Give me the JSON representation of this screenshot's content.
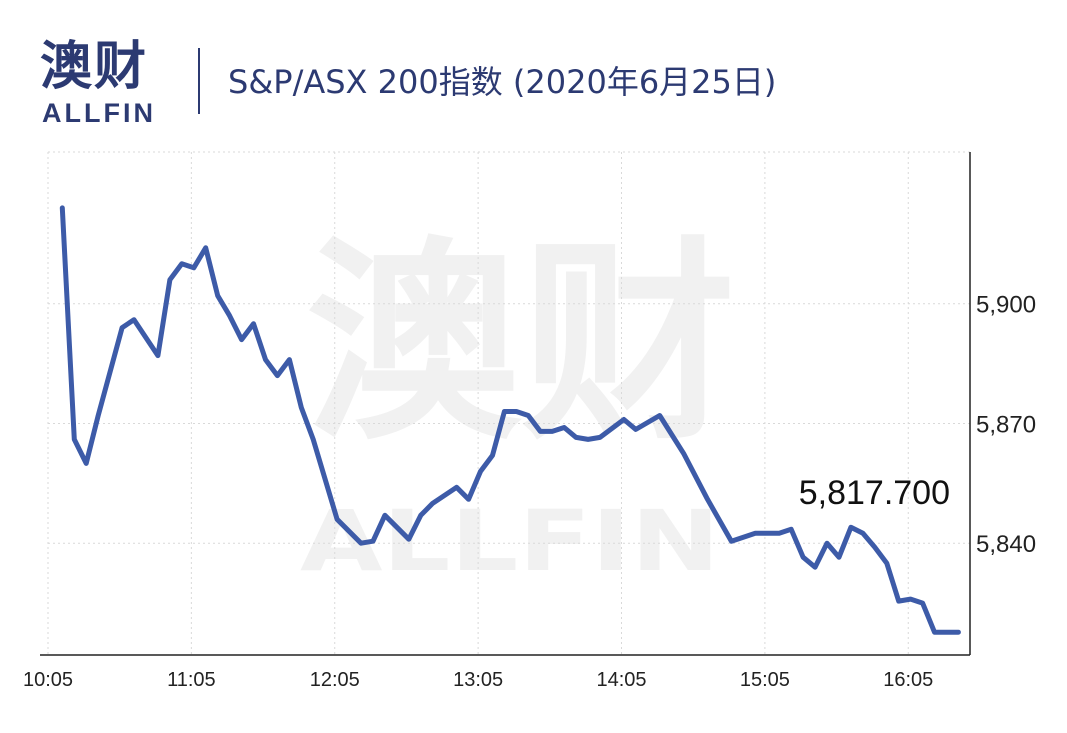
{
  "header": {
    "logo_cn": "澳财",
    "logo_en": "ALLFIN",
    "title": "S&P/ASX 200指数 (2020年6月25日)"
  },
  "watermark": {
    "cn": "澳财",
    "en": "ALLFIN"
  },
  "colors": {
    "line": "#3d5ba8",
    "brand": "#2c3a72",
    "accent": "#d63a5a",
    "grid": "#d9d9d9"
  },
  "chart_data": {
    "type": "line",
    "title": "S&P/ASX 200指数 (2020年6月25日)",
    "x_ticks": [
      "10:05",
      "11:05",
      "12:05",
      "13:05",
      "14:05",
      "15:05",
      "16:05"
    ],
    "y_ticks": [
      "5,840",
      "5,870",
      "5,900"
    ],
    "y_tick_values": [
      5840,
      5870,
      5900
    ],
    "xlim": [
      "10:05",
      "16:30"
    ],
    "ylim": [
      5812,
      5938
    ],
    "grid": true,
    "y_axis_position": "right",
    "annotation": {
      "text": "5,817.700",
      "value": 5817.7
    },
    "series": [
      {
        "x": [
          "10:11",
          "10:16",
          "10:21",
          "10:26",
          "10:36",
          "10:41",
          "10:51",
          "10:56",
          "11:01",
          "11:06",
          "11:11",
          "11:16",
          "11:21",
          "11:26",
          "11:31",
          "11:36",
          "11:41",
          "11:46",
          "11:51",
          "11:56",
          "12:06",
          "12:16",
          "12:21",
          "12:26",
          "12:36",
          "12:41",
          "12:46",
          "12:56",
          "13:01",
          "13:06",
          "13:11",
          "13:16",
          "13:21",
          "13:26",
          "13:31",
          "13:36",
          "13:41",
          "13:46",
          "13:51",
          "13:56",
          "14:06",
          "14:11",
          "14:21",
          "14:31",
          "14:41",
          "14:51",
          "15:01",
          "15:06",
          "15:11",
          "15:16",
          "15:21",
          "15:26",
          "15:31",
          "15:36",
          "15:41",
          "15:46",
          "15:51",
          "15:56",
          "16:01",
          "16:06",
          "16:11",
          "16:16",
          "16:26"
        ],
        "y": [
          5924,
          5866,
          5860,
          5872,
          5894,
          5896,
          5887,
          5906,
          5910,
          5909,
          5914,
          5902,
          5897,
          5891,
          5895,
          5886,
          5882,
          5886,
          5874,
          5866,
          5846,
          5840,
          5840.5,
          5847,
          5841,
          5847,
          5850,
          5854,
          5851,
          5858,
          5862,
          5873,
          5873,
          5872,
          5868,
          5868,
          5869,
          5866.5,
          5866,
          5866.5,
          5871,
          5868.5,
          5872,
          5862.5,
          5851,
          5840.5,
          5842.5,
          5842.5,
          5842.5,
          5843.5,
          5836.5,
          5834,
          5840,
          5836.5,
          5844,
          5842.5,
          5839,
          5835,
          5825.5,
          5826,
          5825,
          5817.7,
          5817.7
        ]
      }
    ]
  }
}
